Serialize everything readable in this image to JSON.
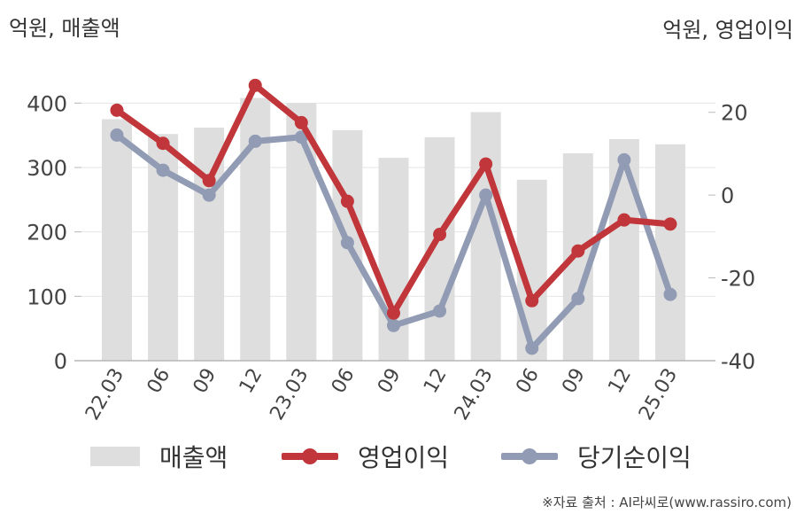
{
  "unit_left": "억원, 매출액",
  "unit_right": "억원, 영업이익",
  "source": "※자료 출처 : AI라씨로(www.rassiro.com)",
  "colors": {
    "revenue": "#dedede",
    "operating_profit": "#c0363a",
    "net_income": "#919bb4",
    "axis_text": "#444444",
    "grid": "#e6e6e6"
  },
  "legend": [
    {
      "label": "매출액",
      "kind": "bar",
      "color": "#dedede"
    },
    {
      "label": "영업이익",
      "kind": "line",
      "color": "#c0363a"
    },
    {
      "label": "당기순이익",
      "kind": "line",
      "color": "#919bb4"
    }
  ],
  "chart_data": {
    "type": "bar",
    "categories": [
      "22.03",
      "06",
      "09",
      "12",
      "23.03",
      "06",
      "09",
      "12",
      "24.03",
      "06",
      "09",
      "12",
      "25.03"
    ],
    "y_left": {
      "ticks": [
        "0",
        "100",
        "200",
        "300",
        "400"
      ],
      "ylim": [
        0,
        450
      ]
    },
    "y_right": {
      "ticks": [
        "-40",
        "-20",
        "0",
        "20"
      ],
      "ylim": [
        -40,
        30
      ]
    },
    "grid": true,
    "legend_position": "bottom",
    "series": [
      {
        "name": "매출액",
        "type": "bar",
        "axis": "left",
        "values": [
          375,
          352,
          362,
          408,
          400,
          358,
          315,
          347,
          386,
          281,
          322,
          344,
          336
        ]
      },
      {
        "name": "영업이익",
        "type": "line",
        "axis": "right",
        "values": [
          20.5,
          12.5,
          3.5,
          26.5,
          17.5,
          -1.5,
          -28.5,
          -9.5,
          7.5,
          -25.5,
          -13.5,
          -6,
          -7
        ]
      },
      {
        "name": "당기순이익",
        "type": "line",
        "axis": "right",
        "values": [
          14.5,
          6,
          0,
          13,
          14,
          -11.5,
          -31.5,
          -28,
          0,
          -37,
          -25,
          8.5,
          -24
        ]
      }
    ]
  }
}
